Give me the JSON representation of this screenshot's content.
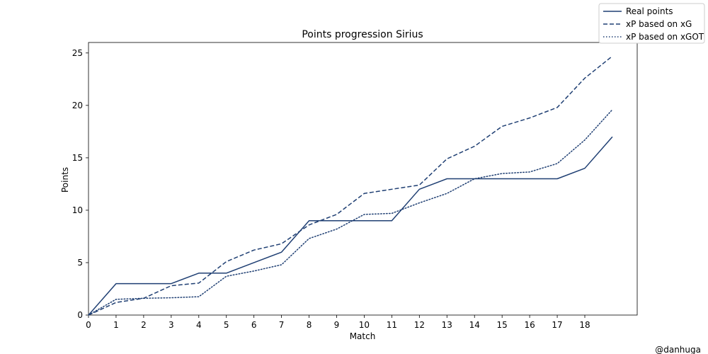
{
  "chart_data": {
    "type": "line",
    "title": "Points progression Sirius",
    "xlabel": "Match",
    "ylabel": "Points",
    "xlim": [
      0,
      19.9
    ],
    "ylim": [
      0,
      26
    ],
    "x_ticks": [
      "0",
      "1",
      "2",
      "3",
      "4",
      "5",
      "6",
      "7",
      "8",
      "9",
      "10",
      "11",
      "12",
      "13",
      "14",
      "15",
      "16",
      "17",
      "18"
    ],
    "y_ticks": [
      "0",
      "5",
      "10",
      "15",
      "20",
      "25"
    ],
    "grid": false,
    "legend_position": "top-right",
    "x": [
      0,
      1,
      2,
      3,
      4,
      5,
      6,
      7,
      8,
      9,
      10,
      11,
      12,
      13,
      14,
      15,
      16,
      17,
      18,
      19
    ],
    "series": [
      {
        "name": "Real points",
        "style": "solid",
        "values": [
          0,
          3,
          3,
          3,
          4,
          4,
          5,
          6,
          9,
          9,
          9,
          9,
          12,
          13,
          13,
          13,
          13,
          13,
          14,
          17
        ]
      },
      {
        "name": "xP based on xG",
        "style": "dashed",
        "values": [
          0,
          1.2,
          1.6,
          2.8,
          3.05,
          5.1,
          6.2,
          6.8,
          8.6,
          9.6,
          11.6,
          12.0,
          12.4,
          14.9,
          16.1,
          18.0,
          18.8,
          19.8,
          22.6,
          24.7
        ]
      },
      {
        "name": "xP based on xGOT",
        "style": "dotted",
        "values": [
          0,
          1.5,
          1.6,
          1.65,
          1.75,
          3.7,
          4.2,
          4.8,
          7.3,
          8.2,
          9.6,
          9.7,
          10.7,
          11.6,
          13.0,
          13.5,
          13.65,
          14.45,
          16.7,
          19.6
        ]
      }
    ],
    "color": "#1f3f73"
  },
  "watermark": "@danhuga"
}
